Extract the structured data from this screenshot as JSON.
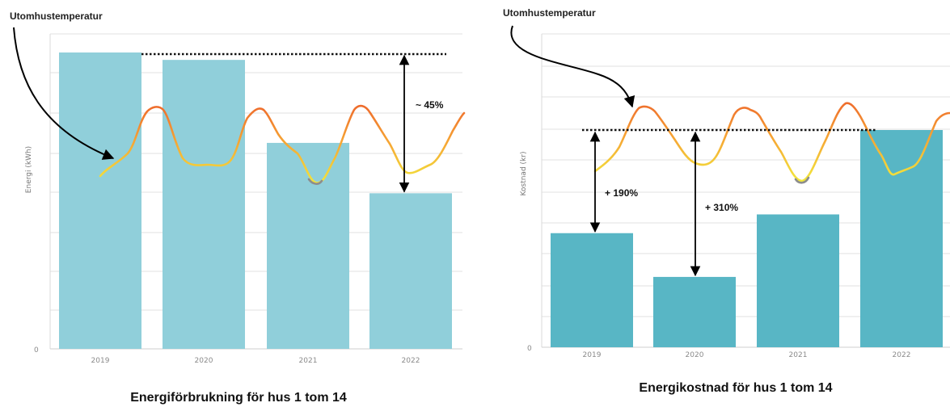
{
  "colors": {
    "bar_left": "#90cfda",
    "bar_right": "#58b6c5",
    "grid": "#e2e2e2",
    "temp_warm": "#ee6a2c",
    "temp_cool": "#f2e93c",
    "temp_min": "#8d8d8d"
  },
  "chart_data": [
    {
      "type": "bar",
      "title": "Energiförbrukning för hus 1 tom 14",
      "ylabel": "Energi (kWh)",
      "xlabel": "",
      "categories": [
        "2019",
        "2020",
        "2021",
        "2022"
      ],
      "values": [
        100,
        97.5,
        69.5,
        52.5
      ],
      "ylim": [
        0,
        100
      ],
      "y_tick_labels": [
        "0"
      ],
      "grid": true,
      "overlay": {
        "label": "Utomhustemperatur",
        "type": "line",
        "description_level": "relative"
      },
      "annotations": [
        {
          "text": "~ 45%",
          "from_category": "2019",
          "to_category": "2022",
          "type": "double-arrow"
        }
      ]
    },
    {
      "type": "bar",
      "title": "Energikostnad för hus 1 tom 14",
      "ylabel": "Kostnad (kr)",
      "xlabel": "",
      "categories": [
        "2019",
        "2020",
        "2021",
        "2022"
      ],
      "values": [
        36.5,
        22.5,
        42.5,
        69.5
      ],
      "ylim": [
        0,
        100
      ],
      "y_tick_labels": [
        "0"
      ],
      "grid": true,
      "overlay": {
        "label": "Utomhustemperatur",
        "type": "line"
      },
      "annotations": [
        {
          "text": "+ 190%",
          "from_category": "2019",
          "to_category": "2022",
          "type": "double-arrow"
        },
        {
          "text": "+ 310%",
          "from_category": "2020",
          "to_category": "2022",
          "type": "double-arrow"
        }
      ]
    }
  ]
}
